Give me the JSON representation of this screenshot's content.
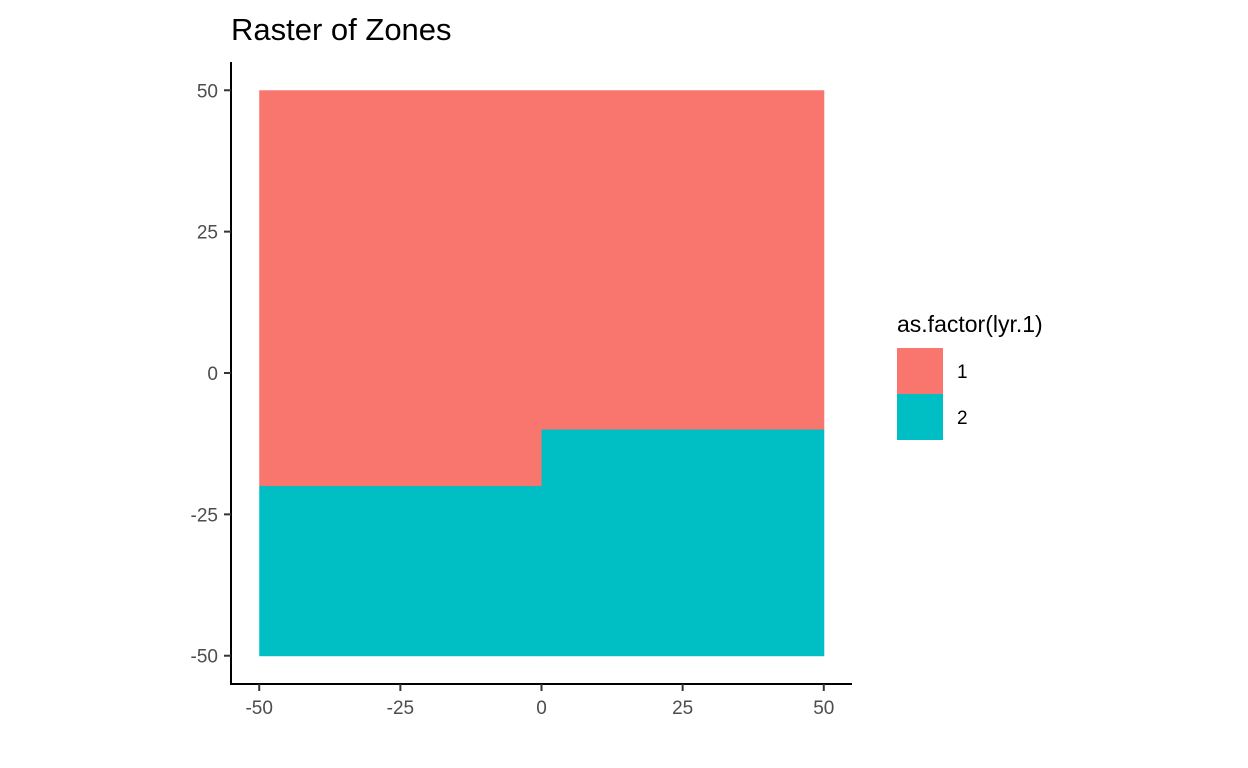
{
  "chart_data": {
    "type": "heatmap",
    "title": "Raster of Zones",
    "xlabel": "",
    "ylabel": "",
    "xlim": [
      -55,
      55
    ],
    "ylim": [
      -55,
      55
    ],
    "x_ticks": [
      -50,
      -25,
      0,
      25,
      50
    ],
    "y_ticks": [
      -50,
      -25,
      0,
      25,
      50
    ],
    "x_tick_labels": [
      "-50",
      "-25",
      "0",
      "25",
      "50"
    ],
    "y_tick_labels": [
      "-50",
      "-25",
      "0",
      "25",
      "50"
    ],
    "grid": false,
    "legend": {
      "title": "as.factor(lyr.1)",
      "placement": "right",
      "entries": [
        {
          "label": "1",
          "color": "#F8766D"
        },
        {
          "label": "2",
          "color": "#00BFC4"
        }
      ]
    },
    "zones": [
      {
        "value": "1",
        "color": "#F8766D",
        "xmin": -50,
        "xmax": 0,
        "ymin": -20,
        "ymax": 50
      },
      {
        "value": "1",
        "color": "#F8766D",
        "xmin": 0,
        "xmax": 50,
        "ymin": -10,
        "ymax": 50
      },
      {
        "value": "2",
        "color": "#00BFC4",
        "xmin": -50,
        "xmax": 0,
        "ymin": -50,
        "ymax": -20
      },
      {
        "value": "2",
        "color": "#00BFC4",
        "xmin": 0,
        "xmax": 50,
        "ymin": -50,
        "ymax": -10
      }
    ]
  }
}
